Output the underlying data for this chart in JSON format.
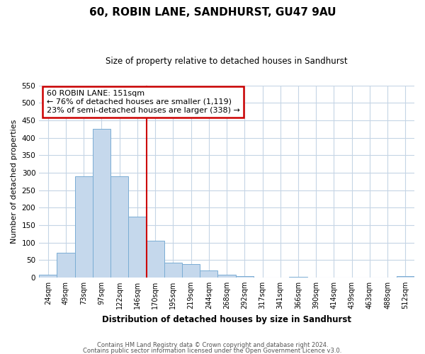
{
  "title": "60, ROBIN LANE, SANDHURST, GU47 9AU",
  "subtitle": "Size of property relative to detached houses in Sandhurst",
  "xlabel": "Distribution of detached houses by size in Sandhurst",
  "ylabel": "Number of detached properties",
  "bin_labels": [
    "24sqm",
    "49sqm",
    "73sqm",
    "97sqm",
    "122sqm",
    "146sqm",
    "170sqm",
    "195sqm",
    "219sqm",
    "244sqm",
    "268sqm",
    "292sqm",
    "317sqm",
    "341sqm",
    "366sqm",
    "390sqm",
    "414sqm",
    "439sqm",
    "463sqm",
    "488sqm",
    "512sqm"
  ],
  "bar_heights": [
    8,
    70,
    290,
    425,
    290,
    175,
    105,
    43,
    38,
    20,
    8,
    3,
    0,
    0,
    2,
    0,
    0,
    0,
    0,
    0,
    3
  ],
  "bar_color": "#c5d8ec",
  "bar_edge_color": "#7aadd4",
  "vline_x": 5.5,
  "vline_color": "#cc0000",
  "annotation_text": "60 ROBIN LANE: 151sqm\n← 76% of detached houses are smaller (1,119)\n23% of semi-detached houses are larger (338) →",
  "annotation_box_color": "#ffffff",
  "annotation_box_edge_color": "#cc0000",
  "ylim": [
    0,
    550
  ],
  "yticks": [
    0,
    50,
    100,
    150,
    200,
    250,
    300,
    350,
    400,
    450,
    500,
    550
  ],
  "footer_line1": "Contains HM Land Registry data © Crown copyright and database right 2024.",
  "footer_line2": "Contains public sector information licensed under the Open Government Licence v3.0.",
  "bg_color": "#ffffff",
  "grid_color": "#c5d5e5"
}
